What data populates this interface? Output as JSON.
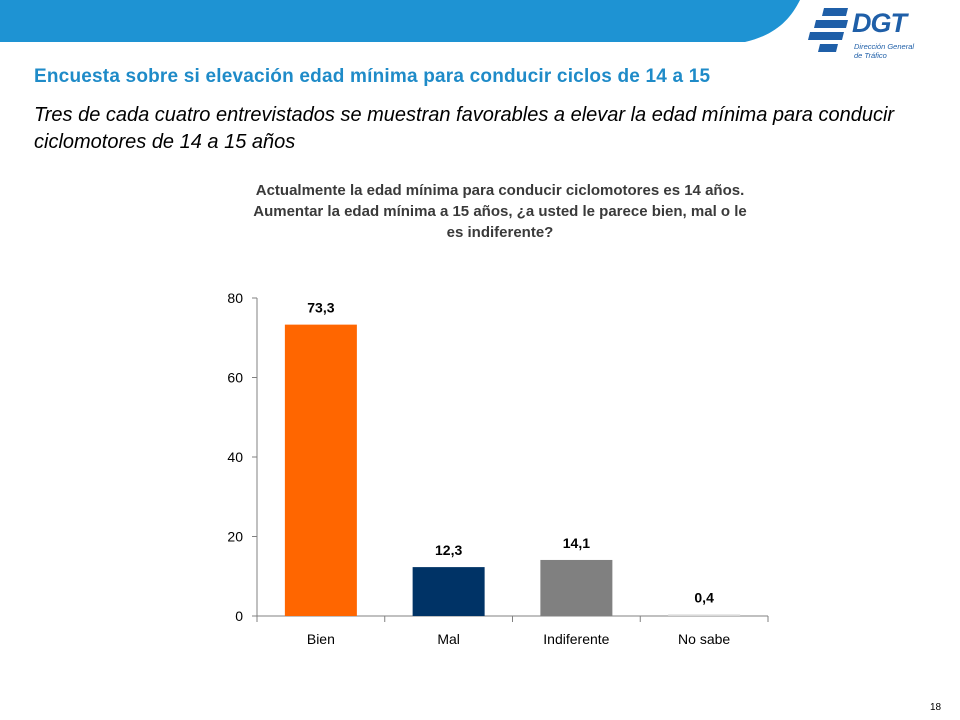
{
  "header": {
    "title": "Encuesta sobre si elevación edad mínima para conducir ciclos de 14 a 15",
    "subtitle": "Tres de cada cuatro entrevistados se muestran favorables a elevar la edad mínima para conducir ciclomotores de 14 a 15 años"
  },
  "logo": {
    "text": "DGT",
    "line1": "Dirección General",
    "line2": "de Tráfico"
  },
  "colors": {
    "banner": "#1e93d3",
    "title": "#1f8bc8"
  },
  "page_number": "18",
  "chart_data": {
    "type": "bar",
    "title": "Actualmente la edad mínima para conducir ciclomotores es 14 años. Aumentar la edad mínima a 15 años, ¿a usted le parece bien, mal o le es indiferente?",
    "categories": [
      "Bien",
      "Mal",
      "Indiferente",
      "No sabe"
    ],
    "values": [
      73.3,
      12.3,
      14.1,
      0.4
    ],
    "value_labels": [
      "73,3",
      "12,3",
      "14,1",
      "0,4"
    ],
    "colors": [
      "#ff6600",
      "#003366",
      "#808080",
      "#d9d9d9"
    ],
    "ylim": [
      0,
      80
    ],
    "yticks": [
      0,
      20,
      40,
      60,
      80
    ],
    "xlabel": "",
    "ylabel": "",
    "grid": false,
    "legend": "none"
  }
}
